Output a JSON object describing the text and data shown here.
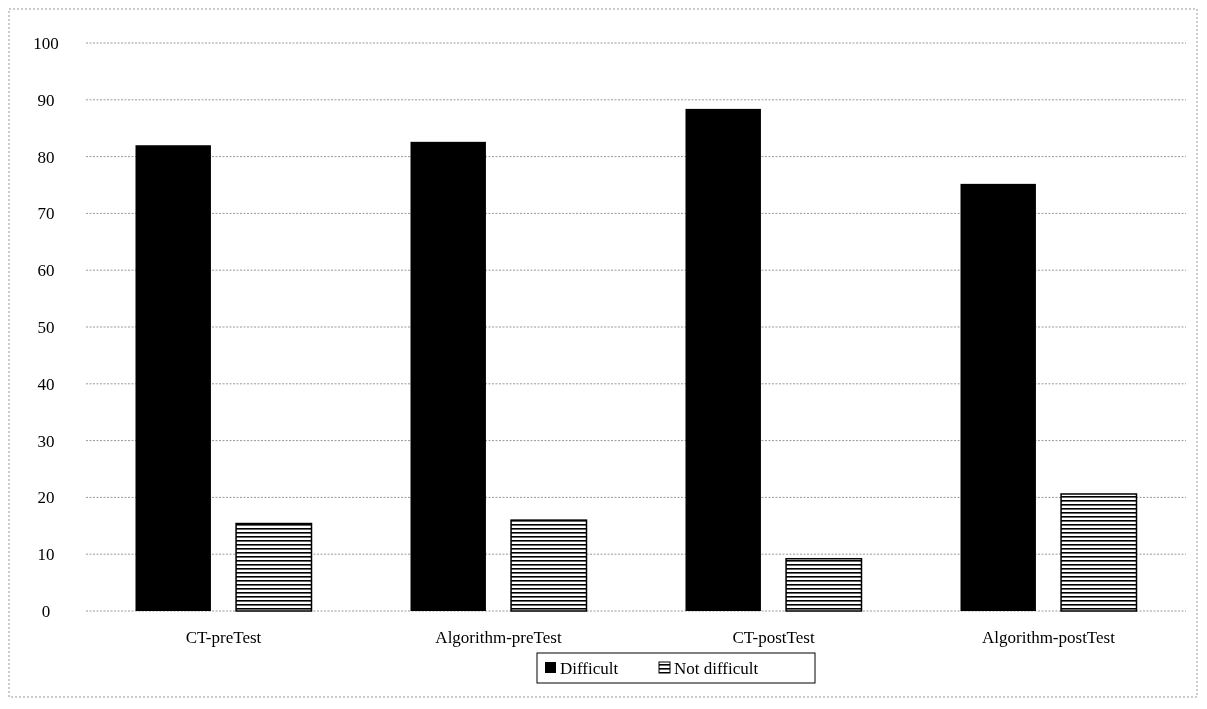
{
  "chart_data": {
    "type": "bar",
    "categories": [
      "CT-preTest",
      "Algorithm-preTest",
      "CT-postTest",
      "Algorithm-postTest"
    ],
    "series": [
      {
        "name": "Difficult",
        "color": "#000000",
        "values": [
          82,
          82.6,
          88.4,
          75.2
        ]
      },
      {
        "name": "Not difficult",
        "color": "#000000",
        "values": [
          15.4,
          16,
          9.2,
          20.6
        ]
      }
    ],
    "ylim": [
      0,
      100
    ],
    "yticks": [
      0,
      10,
      20,
      30,
      40,
      50,
      60,
      70,
      80,
      90,
      100
    ],
    "grid": "y",
    "legend": "bottom"
  }
}
